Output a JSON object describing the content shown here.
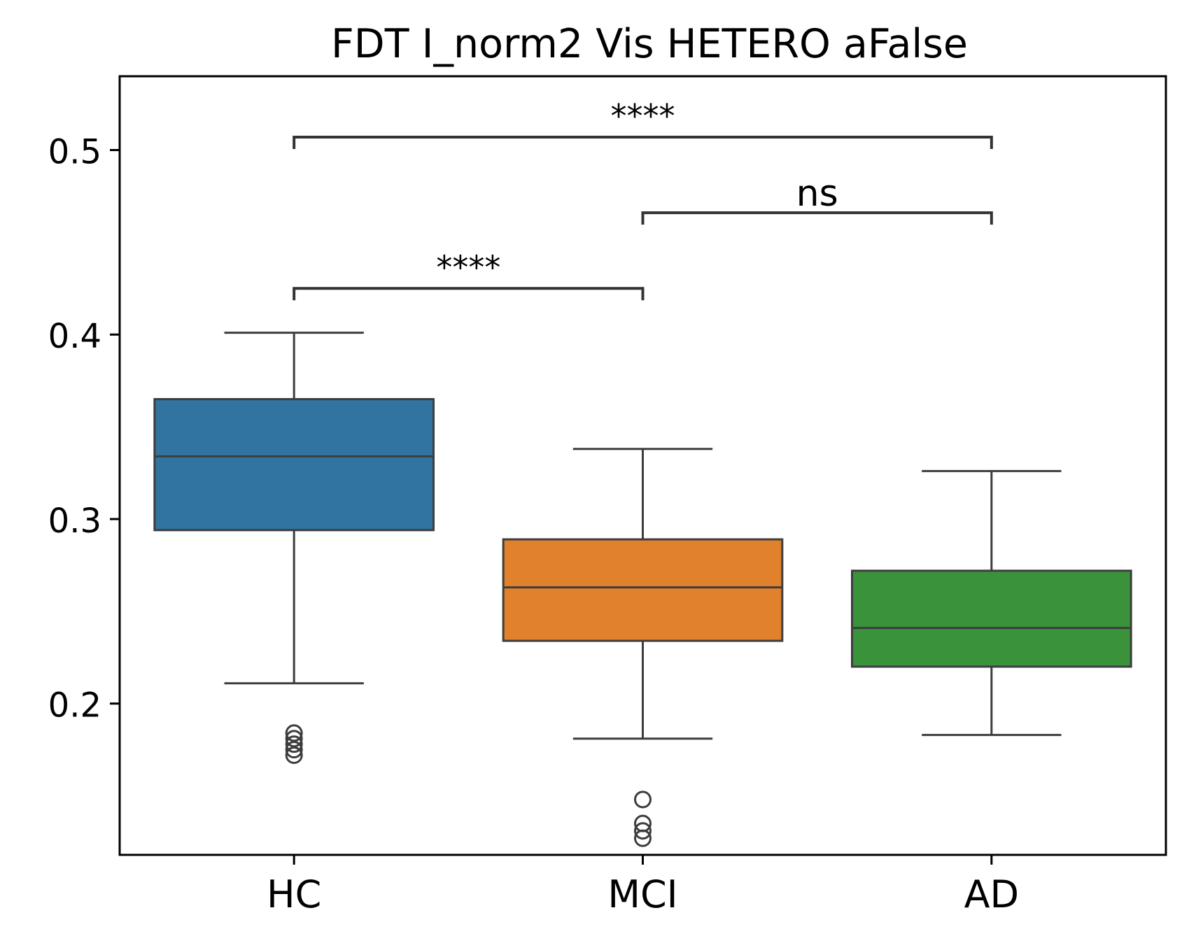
{
  "chart_data": {
    "type": "box",
    "title": "FDT I_norm2 Vis HETERO aFalse",
    "xlabel": "",
    "ylabel": "",
    "ylim": [
      0.118,
      0.54
    ],
    "yticks": [
      0.2,
      0.3,
      0.4,
      0.5
    ],
    "ytick_labels": [
      "0.2",
      "0.3",
      "0.4",
      "0.5"
    ],
    "grid": false,
    "categories": [
      "HC",
      "MCI",
      "AD"
    ],
    "colors": [
      "#3274a1",
      "#e1812c",
      "#3a923a"
    ],
    "edge_color": "#3d3d3d",
    "boxes": [
      {
        "label": "HC",
        "whisker_low": 0.211,
        "q1": 0.294,
        "median": 0.334,
        "q3": 0.365,
        "whisker_high": 0.401,
        "outliers": [
          0.184,
          0.181,
          0.178,
          0.175,
          0.172
        ]
      },
      {
        "label": "MCI",
        "whisker_low": 0.181,
        "q1": 0.234,
        "median": 0.263,
        "q3": 0.289,
        "whisker_high": 0.338,
        "outliers": [
          0.148,
          0.135,
          0.131,
          0.127
        ]
      },
      {
        "label": "AD",
        "whisker_low": 0.183,
        "q1": 0.22,
        "median": 0.241,
        "q3": 0.272,
        "whisker_high": 0.326,
        "outliers": []
      }
    ],
    "annotations": [
      {
        "from": "HC",
        "to": "MCI",
        "y": 0.425,
        "label": "****"
      },
      {
        "from": "MCI",
        "to": "AD",
        "y": 0.466,
        "label": "ns"
      },
      {
        "from": "HC",
        "to": "AD",
        "y": 0.507,
        "label": "****"
      }
    ]
  }
}
